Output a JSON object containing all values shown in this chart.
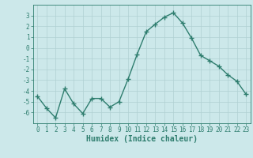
{
  "x": [
    0,
    1,
    2,
    3,
    4,
    5,
    6,
    7,
    8,
    9,
    10,
    11,
    12,
    13,
    14,
    15,
    16,
    17,
    18,
    19,
    20,
    21,
    22,
    23
  ],
  "y": [
    -4.5,
    -5.6,
    -6.5,
    -3.8,
    -5.2,
    -6.1,
    -4.7,
    -4.7,
    -5.5,
    -5.0,
    -2.9,
    -0.6,
    1.5,
    2.2,
    2.85,
    3.25,
    2.3,
    0.9,
    -0.7,
    -1.2,
    -1.7,
    -2.5,
    -3.1,
    -4.3
  ],
  "line_color": "#2e7d6e",
  "marker": "+",
  "marker_size": 4,
  "marker_edge_width": 1.0,
  "bg_color": "#cce8ea",
  "grid_color": "#b0d0d2",
  "xlabel": "Humidex (Indice chaleur)",
  "xlim": [
    -0.5,
    23.5
  ],
  "ylim": [
    -7,
    4
  ],
  "yticks": [
    -6,
    -5,
    -4,
    -3,
    -2,
    -1,
    0,
    1,
    2,
    3
  ],
  "xticks": [
    0,
    1,
    2,
    3,
    4,
    5,
    6,
    7,
    8,
    9,
    10,
    11,
    12,
    13,
    14,
    15,
    16,
    17,
    18,
    19,
    20,
    21,
    22,
    23
  ],
  "tick_fontsize": 5.5,
  "label_fontsize": 7,
  "line_width": 1.0
}
